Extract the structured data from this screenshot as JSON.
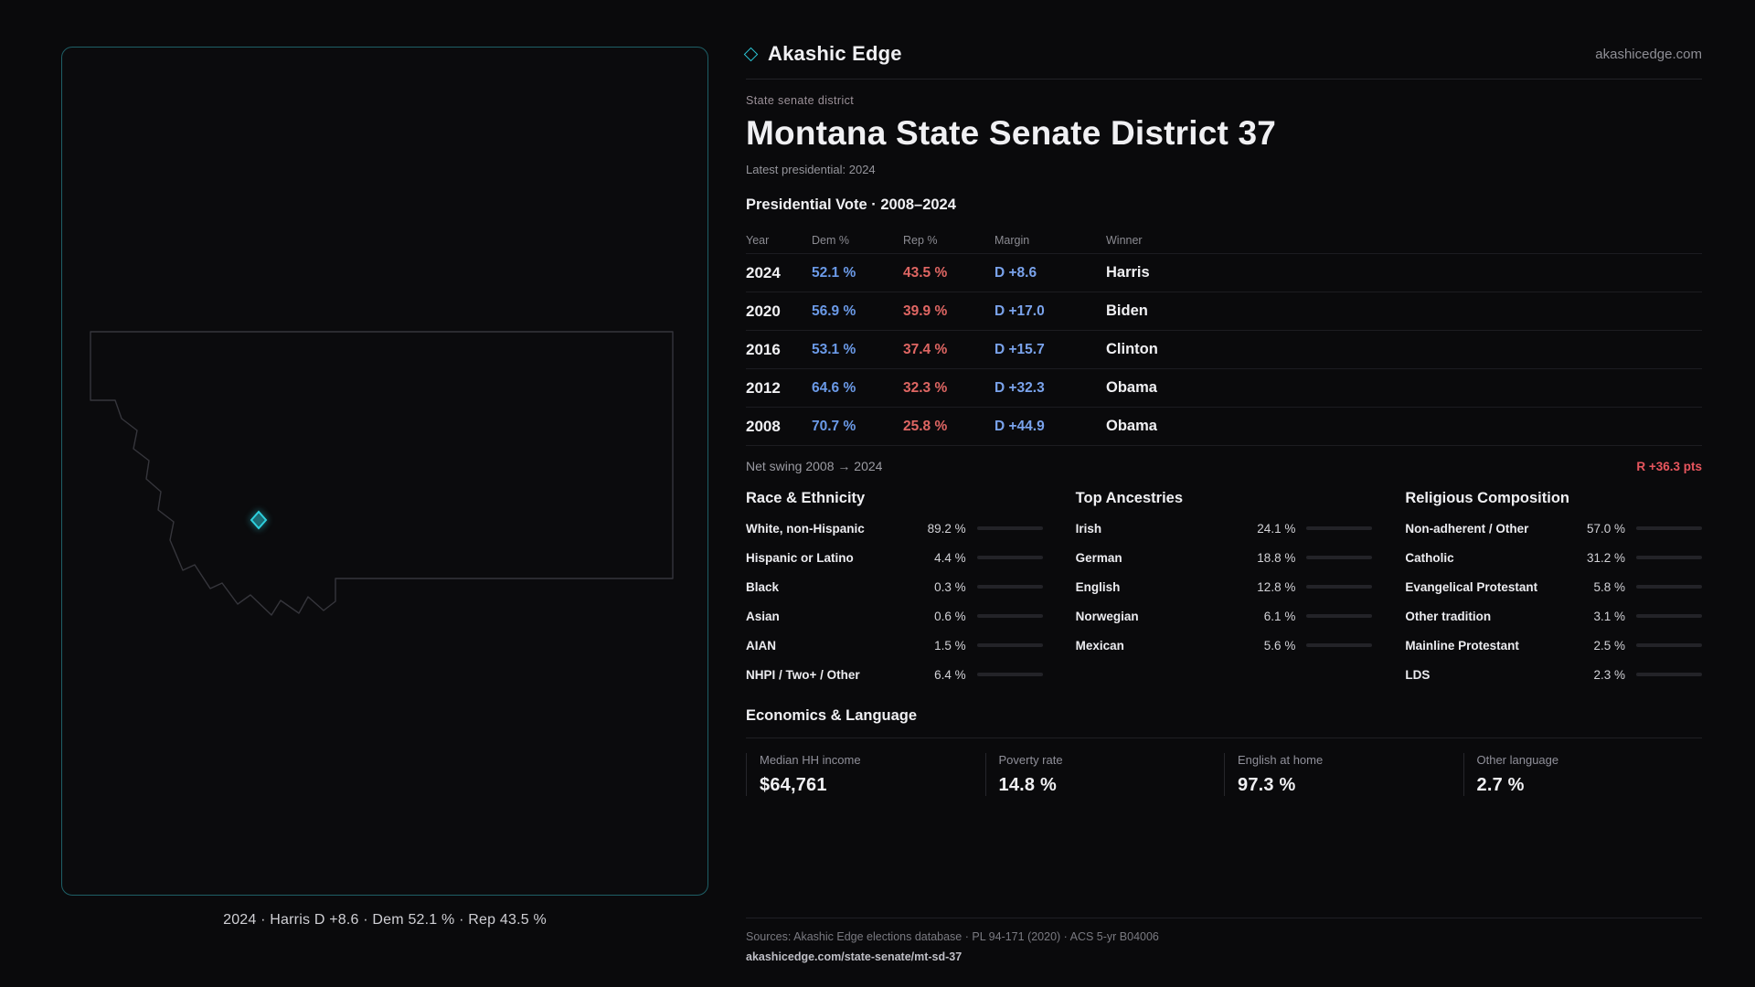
{
  "brand": {
    "name": "Akashic Edge",
    "domain": "akashicedge.com"
  },
  "page": {
    "kicker": "State senate district",
    "title": "Montana State Senate District 37",
    "latest_label": "Latest presidential: 2024"
  },
  "map": {
    "caption": "2024 · Harris D +8.6 · Dem 52.1 % · Rep 43.5 %"
  },
  "vote_table": {
    "title": "Presidential Vote · 2008–2024",
    "columns": {
      "year": "Year",
      "dem": "Dem %",
      "rep": "Rep %",
      "margin": "Margin",
      "winner": "Winner"
    },
    "rows": [
      {
        "year": "2024",
        "dem": "52.1 %",
        "rep": "43.5 %",
        "margin": "D +8.6",
        "winner": "Harris"
      },
      {
        "year": "2020",
        "dem": "56.9 %",
        "rep": "39.9 %",
        "margin": "D +17.0",
        "winner": "Biden"
      },
      {
        "year": "2016",
        "dem": "53.1 %",
        "rep": "37.4 %",
        "margin": "D +15.7",
        "winner": "Clinton"
      },
      {
        "year": "2012",
        "dem": "64.6 %",
        "rep": "32.3 %",
        "margin": "D +32.3",
        "winner": "Obama"
      },
      {
        "year": "2008",
        "dem": "70.7 %",
        "rep": "25.8 %",
        "margin": "D +44.9",
        "winner": "Obama"
      }
    ],
    "net_swing_label": "Net swing 2008 → 2024",
    "net_swing_value": "R +36.3 pts"
  },
  "race": {
    "title": "Race & Ethnicity",
    "rows": [
      {
        "label": "White, non-Hispanic",
        "value": "89.2 %",
        "pct": 89.2
      },
      {
        "label": "Hispanic or Latino",
        "value": "4.4 %",
        "pct": 4.4
      },
      {
        "label": "Black",
        "value": "0.3 %",
        "pct": 0.3
      },
      {
        "label": "Asian",
        "value": "0.6 %",
        "pct": 0.6
      },
      {
        "label": "AIAN",
        "value": "1.5 %",
        "pct": 1.5
      },
      {
        "label": "NHPI / Two+ / Other",
        "value": "6.4 %",
        "pct": 6.4
      }
    ]
  },
  "ancestries": {
    "title": "Top Ancestries",
    "rows": [
      {
        "label": "Irish",
        "value": "24.1 %",
        "pct": 24.1
      },
      {
        "label": "German",
        "value": "18.8 %",
        "pct": 18.8
      },
      {
        "label": "English",
        "value": "12.8 %",
        "pct": 12.8
      },
      {
        "label": "Norwegian",
        "value": "6.1 %",
        "pct": 6.1
      },
      {
        "label": "Mexican",
        "value": "5.6 %",
        "pct": 5.6
      }
    ]
  },
  "religion": {
    "title": "Religious Composition",
    "rows": [
      {
        "label": "Non-adherent / Other",
        "value": "57.0 %",
        "pct": 57.0
      },
      {
        "label": "Catholic",
        "value": "31.2 %",
        "pct": 31.2
      },
      {
        "label": "Evangelical Protestant",
        "value": "5.8 %",
        "pct": 5.8
      },
      {
        "label": "Other tradition",
        "value": "3.1 %",
        "pct": 3.1
      },
      {
        "label": "Mainline Protestant",
        "value": "2.5 %",
        "pct": 2.5
      },
      {
        "label": "LDS",
        "value": "2.3 %",
        "pct": 2.3
      }
    ]
  },
  "economics": {
    "title": "Economics & Language",
    "cards": [
      {
        "label": "Median HH income",
        "value": "$64,761"
      },
      {
        "label": "Poverty rate",
        "value": "14.8 %"
      },
      {
        "label": "English at home",
        "value": "97.3 %"
      },
      {
        "label": "Other language",
        "value": "2.7 %"
      }
    ]
  },
  "footer": {
    "sources": "Sources: Akashic Edge elections database · PL 94-171 (2020) · ACS 5-yr B04006",
    "permalink": "akashicedge.com/state-senate/mt-sd-37"
  },
  "colors": {
    "accent_cyan": "#2cc6d6",
    "dem_blue": "#6b9ae8",
    "rep_red": "#df6663",
    "swing_red": "#e8565e",
    "panel_border_teal": "#1e5f66"
  }
}
